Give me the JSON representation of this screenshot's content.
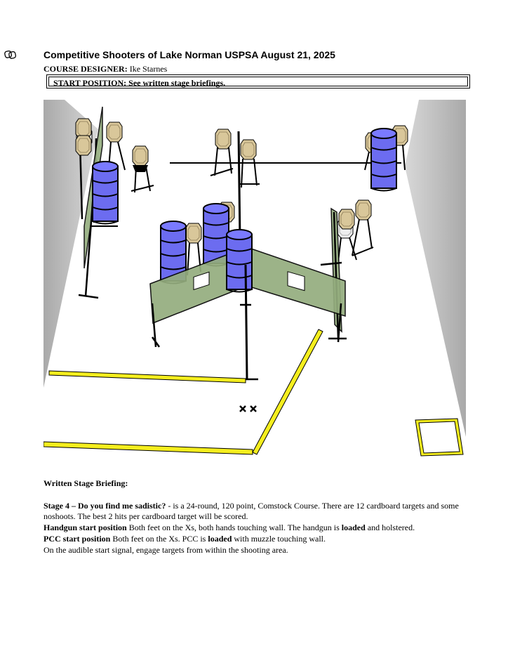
{
  "header": {
    "title": "Competitive Shooters of Lake Norman USPSA August 21, 2025",
    "designer_label": "COURSE DESIGNER:",
    "designer_name": "Ike Starnes",
    "start_position_label": "START POSITION:",
    "start_position_text": "See written stage briefings."
  },
  "briefing": {
    "heading": "Written Stage Briefing:",
    "stage_title": "Stage 4 – Do you find me sadistic?",
    "stage_desc": " - is a 24-round, 120 point, Comstock Course. There are 12 cardboard targets and some noshoots. The best 2 hits per cardboard target will be scored.",
    "handgun_label": "Handgun start position",
    "handgun_text_1": " Both feet on the Xs, both hands touching wall. The handgun is ",
    "handgun_bold": "loaded",
    "handgun_text_2": " and holstered.",
    "pcc_label": "PCC start position",
    "pcc_text_1": " Both feet on the Xs. PCC is ",
    "pcc_bold": "loaded",
    "pcc_text_2": " with muzzle touching wall.",
    "signal_text": "On the audible start signal, engage targets from within the shooting area."
  },
  "colors": {
    "barrel": "#6c6cf0",
    "wall": "#94ad7e",
    "fault_line": "#f5ee1e",
    "side_wall": "#c4c4c4"
  }
}
